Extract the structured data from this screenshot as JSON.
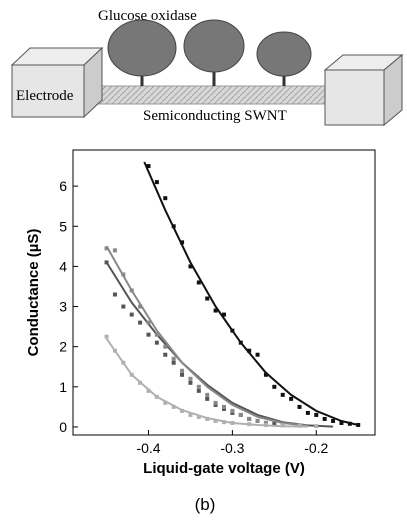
{
  "diagram": {
    "enzyme_label": "Glucose oxidase",
    "electrode_label": "Electrode",
    "tube_label": "Semiconducting SWNT"
  },
  "chart_data": {
    "type": "scatter",
    "x_label": "Liquid-gate voltage (V)",
    "y_label": "Conductance (µS)",
    "xlim": [
      -0.49,
      -0.13
    ],
    "ylim": [
      -0.2,
      6.9
    ],
    "xticks": [
      -0.4,
      -0.3,
      -0.2
    ],
    "yticks": [
      0,
      1,
      2,
      3,
      4,
      5,
      6
    ],
    "series": [
      {
        "mode": "points",
        "color": "#111111",
        "x": [
          -0.4,
          -0.39,
          -0.38,
          -0.37,
          -0.36,
          -0.35,
          -0.34,
          -0.33,
          -0.32,
          -0.31,
          -0.3,
          -0.29,
          -0.28,
          -0.27,
          -0.26,
          -0.25,
          -0.24,
          -0.23,
          -0.22,
          -0.21,
          -0.2,
          -0.19,
          -0.18,
          -0.17,
          -0.16,
          -0.15
        ],
        "values": [
          6.5,
          6.1,
          5.7,
          5.0,
          4.6,
          4.0,
          3.6,
          3.2,
          2.9,
          2.8,
          2.4,
          2.1,
          1.9,
          1.8,
          1.3,
          1.0,
          0.8,
          0.7,
          0.5,
          0.35,
          0.3,
          0.2,
          0.15,
          0.1,
          0.08,
          0.05
        ]
      },
      {
        "mode": "line",
        "color": "#111111",
        "x": [
          -0.405,
          -0.38,
          -0.35,
          -0.32,
          -0.29,
          -0.26,
          -0.23,
          -0.2,
          -0.17,
          -0.15
        ],
        "values": [
          6.6,
          5.4,
          4.1,
          3.0,
          2.1,
          1.35,
          0.8,
          0.4,
          0.15,
          0.05
        ]
      },
      {
        "mode": "points",
        "color": "#555555",
        "x": [
          -0.45,
          -0.44,
          -0.43,
          -0.42,
          -0.41,
          -0.4,
          -0.39,
          -0.38,
          -0.37,
          -0.36,
          -0.35,
          -0.34,
          -0.33,
          -0.32,
          -0.31,
          -0.3,
          -0.29,
          -0.28,
          -0.27,
          -0.26,
          -0.25,
          -0.24
        ],
        "values": [
          4.1,
          3.3,
          3.0,
          2.8,
          2.6,
          2.3,
          2.1,
          1.8,
          1.6,
          1.3,
          1.1,
          0.9,
          0.7,
          0.55,
          0.45,
          0.35,
          0.3,
          0.2,
          0.15,
          0.1,
          0.08,
          0.05
        ]
      },
      {
        "mode": "line",
        "color": "#555555",
        "x": [
          -0.45,
          -0.42,
          -0.39,
          -0.36,
          -0.33,
          -0.3,
          -0.27,
          -0.24,
          -0.21,
          -0.18
        ],
        "values": [
          4.1,
          3.1,
          2.3,
          1.6,
          1.05,
          0.6,
          0.3,
          0.12,
          0.04,
          0.01
        ]
      },
      {
        "mode": "points",
        "color": "#888888",
        "x": [
          -0.45,
          -0.44,
          -0.43,
          -0.42,
          -0.41,
          -0.4,
          -0.39,
          -0.38,
          -0.37,
          -0.36,
          -0.35,
          -0.34,
          -0.33,
          -0.32,
          -0.31,
          -0.3,
          -0.29,
          -0.28,
          -0.27,
          -0.26
        ],
        "values": [
          4.45,
          4.4,
          3.8,
          3.4,
          3.0,
          2.6,
          2.3,
          2.0,
          1.7,
          1.4,
          1.2,
          1.0,
          0.8,
          0.6,
          0.5,
          0.4,
          0.3,
          0.2,
          0.15,
          0.1
        ]
      },
      {
        "mode": "line",
        "color": "#888888",
        "x": [
          -0.45,
          -0.42,
          -0.39,
          -0.36,
          -0.33,
          -0.3,
          -0.27,
          -0.24,
          -0.21
        ],
        "values": [
          4.5,
          3.4,
          2.4,
          1.6,
          1.0,
          0.55,
          0.25,
          0.1,
          0.03
        ]
      },
      {
        "mode": "points",
        "color": "#b0b0b0",
        "x": [
          -0.45,
          -0.44,
          -0.43,
          -0.42,
          -0.41,
          -0.4,
          -0.39,
          -0.38,
          -0.37,
          -0.36,
          -0.35,
          -0.34,
          -0.33,
          -0.32,
          -0.31,
          -0.3,
          -0.28,
          -0.26,
          -0.24,
          -0.22,
          -0.2
        ],
        "values": [
          2.25,
          1.9,
          1.6,
          1.3,
          1.1,
          0.9,
          0.75,
          0.6,
          0.5,
          0.4,
          0.3,
          0.25,
          0.2,
          0.15,
          0.12,
          0.1,
          0.07,
          0.05,
          0.04,
          0.03,
          0.02
        ]
      },
      {
        "mode": "line",
        "color": "#b0b0b0",
        "x": [
          -0.45,
          -0.42,
          -0.39,
          -0.36,
          -0.33,
          -0.3,
          -0.27,
          -0.24,
          -0.21
        ],
        "values": [
          2.2,
          1.3,
          0.75,
          0.42,
          0.22,
          0.1,
          0.05,
          0.02,
          0.01
        ]
      }
    ]
  },
  "caption": "(b)"
}
